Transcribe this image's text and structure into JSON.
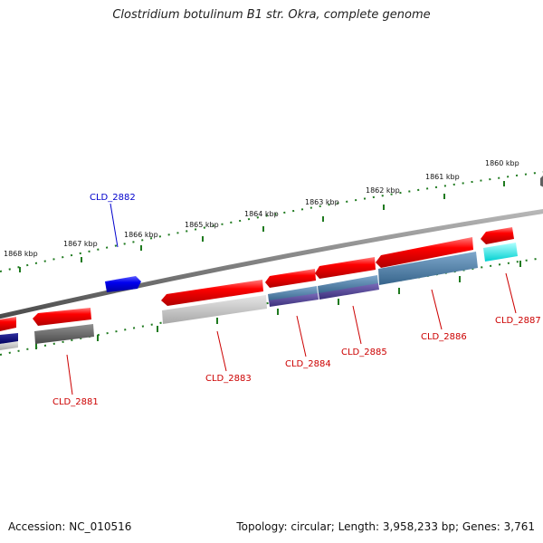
{
  "title": "Clostridium botulinum B1 str. Okra, complete genome",
  "footer": {
    "accession": "Accession: NC_010516",
    "summary": "Topology: circular; Length: 3,958,233 bp; Genes: 3,761"
  },
  "colors": {
    "forward_gene": "#ff0000",
    "highlight_gene": "#0000ee",
    "backbone": "#808080",
    "tick": "#1f7a1f",
    "label_forward": "#0000cc",
    "label_reverse": "#cc0000"
  },
  "scale_labels": [
    "1868 kbp",
    "1867 kbp",
    "1866 kbp",
    "1865 kbp",
    "1864 kbp",
    "1863 kbp",
    "1862 kbp",
    "1861 kbp",
    "1860 kbp"
  ],
  "genes": [
    {
      "label": "CLD_2881",
      "strand": "reverse"
    },
    {
      "label": "CLD_2882",
      "strand": "forward"
    },
    {
      "label": "CLD_2883",
      "strand": "reverse"
    },
    {
      "label": "CLD_2884",
      "strand": "reverse"
    },
    {
      "label": "CLD_2885",
      "strand": "reverse"
    },
    {
      "label": "CLD_2886",
      "strand": "reverse"
    },
    {
      "label": "CLD_2887",
      "strand": "reverse"
    }
  ]
}
